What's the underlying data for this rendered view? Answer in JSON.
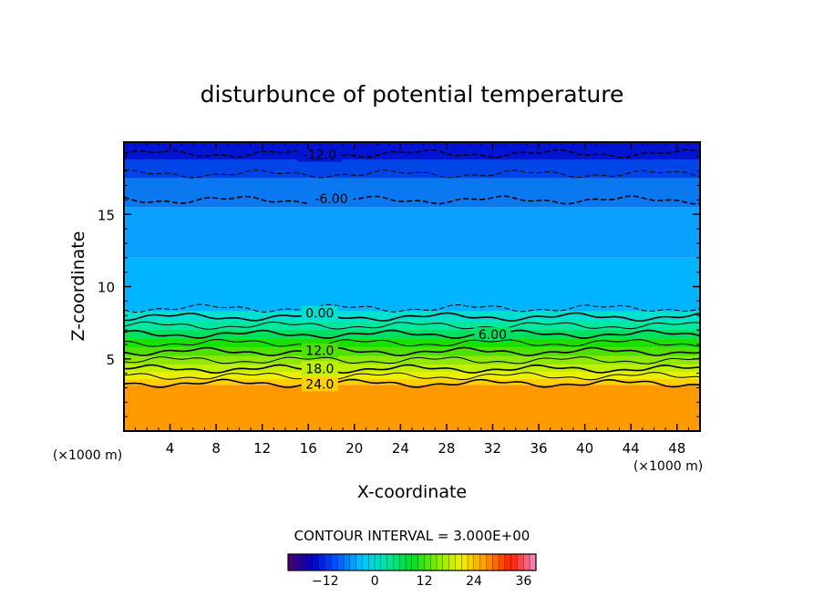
{
  "chart_data": {
    "type": "heatmap",
    "title": "disturbunce of potential temperature",
    "xlabel": "X-coordinate",
    "ylabel": "Z-coordinate",
    "x_unit": "(×1000 m)",
    "z_unit": "(×1000 m)",
    "xlim": [
      0,
      50
    ],
    "ylim": [
      0,
      20
    ],
    "x_ticks": [
      4,
      8,
      12,
      16,
      20,
      24,
      28,
      32,
      36,
      40,
      44,
      48
    ],
    "y_ticks": [
      5,
      10,
      15
    ],
    "contour_interval_text": "CONTOUR INTERVAL = 3.000E+00",
    "contour_interval": 3,
    "colorbar": {
      "min": -21,
      "max": 39,
      "ticks": [
        -12,
        0,
        12,
        24,
        36
      ]
    },
    "field_bands": [
      {
        "z": [
          0.0,
          3.2
        ],
        "value": 30,
        "color": "#ff9a00"
      },
      {
        "z": [
          3.2,
          3.6
        ],
        "value": 27,
        "color": "#ffd000"
      },
      {
        "z": [
          3.6,
          4.1
        ],
        "value": 24,
        "color": "#e8f000"
      },
      {
        "z": [
          4.1,
          4.6
        ],
        "value": 21,
        "color": "#bff000"
      },
      {
        "z": [
          4.6,
          5.2
        ],
        "value": 18,
        "color": "#8ee800"
      },
      {
        "z": [
          5.2,
          5.8
        ],
        "value": 15,
        "color": "#4ee000"
      },
      {
        "z": [
          5.8,
          6.4
        ],
        "value": 12,
        "color": "#18e000"
      },
      {
        "z": [
          6.4,
          7.0
        ],
        "value": 9,
        "color": "#00e060"
      },
      {
        "z": [
          7.0,
          7.6
        ],
        "value": 6,
        "color": "#00e8a0"
      },
      {
        "z": [
          7.6,
          8.3
        ],
        "value": 3,
        "color": "#00e0d0"
      },
      {
        "z": [
          8.3,
          12.0
        ],
        "value": 0,
        "color": "#00b4ff"
      },
      {
        "z": [
          12.0,
          15.5
        ],
        "value": -3,
        "color": "#0aa0ff"
      },
      {
        "z": [
          15.5,
          17.5
        ],
        "value": -6,
        "color": "#0a78f0"
      },
      {
        "z": [
          17.5,
          18.8
        ],
        "value": -9,
        "color": "#0046e6"
      },
      {
        "z": [
          18.8,
          20.0
        ],
        "value": -12,
        "color": "#0014d2"
      }
    ],
    "contours": [
      {
        "level": -12,
        "z": 19.2,
        "style": "dashed",
        "label": "-12.0",
        "label_x": 17
      },
      {
        "level": -9,
        "z": 17.8,
        "style": "dashed",
        "label": null
      },
      {
        "level": -6,
        "z": 16.0,
        "style": "dashed",
        "label": "-6.00",
        "label_x": 18
      },
      {
        "level": -3,
        "z": 8.5,
        "style": "dashed",
        "label": null
      },
      {
        "level": 0,
        "z": 7.9,
        "style": "solid",
        "label": "0.00",
        "label_x": 17
      },
      {
        "level": 3,
        "z": 7.3,
        "style": "solid",
        "label": null
      },
      {
        "level": 6,
        "z": 6.7,
        "style": "solid",
        "label": "6.00",
        "label_x": 32
      },
      {
        "level": 9,
        "z": 6.1,
        "style": "solid",
        "label": null
      },
      {
        "level": 12,
        "z": 5.5,
        "style": "solid",
        "label": "12.0",
        "label_x": 17
      },
      {
        "level": 15,
        "z": 4.9,
        "style": "solid",
        "label": null
      },
      {
        "level": 18,
        "z": 4.3,
        "style": "solid",
        "label": "18.0",
        "label_x": 17
      },
      {
        "level": 21,
        "z": 3.8,
        "style": "solid",
        "label": null
      },
      {
        "level": 24,
        "z": 3.3,
        "style": "solid",
        "label": "24.0",
        "label_x": 17
      }
    ],
    "grid": false,
    "legend": "colorbar bottom-center"
  }
}
